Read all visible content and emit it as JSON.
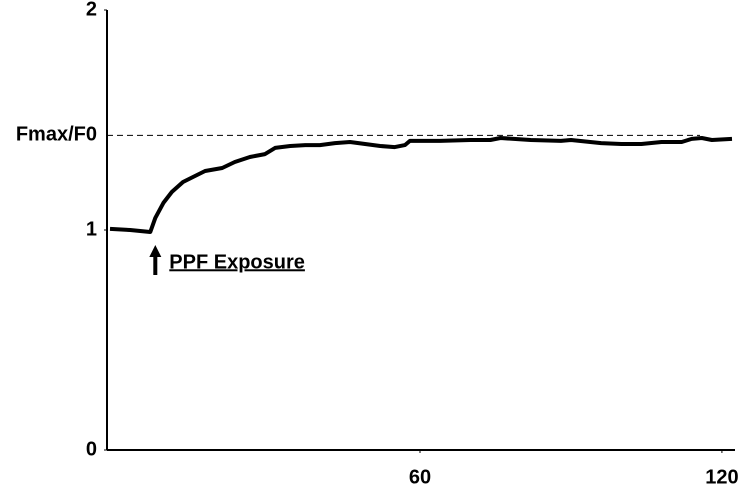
{
  "chart_data": {
    "type": "line",
    "x": [
      -1.6,
      2.4,
      6.4,
      7.4,
      9,
      10.7,
      12.9,
      14.9,
      17.3,
      20.7,
      23.2,
      26.2,
      29.2,
      31.2,
      34.2,
      37.2,
      40.1,
      43.1,
      46.1,
      49.1,
      52.1,
      55,
      57,
      58,
      64,
      70,
      74,
      76,
      82,
      88,
      90,
      96,
      100,
      104,
      108,
      112,
      114,
      116,
      118,
      122
    ],
    "series": [
      {
        "color": "#000000",
        "values": [
          1.005,
          1.0,
          0.991,
          1.055,
          1.123,
          1.173,
          1.218,
          1.241,
          1.268,
          1.282,
          1.309,
          1.332,
          1.345,
          1.373,
          1.382,
          1.386,
          1.386,
          1.395,
          1.4,
          1.391,
          1.382,
          1.377,
          1.386,
          1.405,
          1.405,
          1.409,
          1.409,
          1.418,
          1.409,
          1.405,
          1.409,
          1.395,
          1.391,
          1.391,
          1.4,
          1.4,
          1.414,
          1.418,
          1.409,
          1.414
        ]
      }
    ],
    "xlim": [
      -2.2,
      122.6
    ],
    "xticks": [
      60,
      120
    ],
    "ylim": [
      0,
      2
    ],
    "yticks": [
      0,
      1,
      2
    ],
    "reference_lines": [
      {
        "y": 1.43,
        "label": "Fmax/F0",
        "style": "dashed"
      }
    ],
    "annotations": [
      {
        "text": "PPF Exposure",
        "x": 7.4,
        "y": 0.85,
        "arrow": "up",
        "underline": true
      }
    ]
  }
}
